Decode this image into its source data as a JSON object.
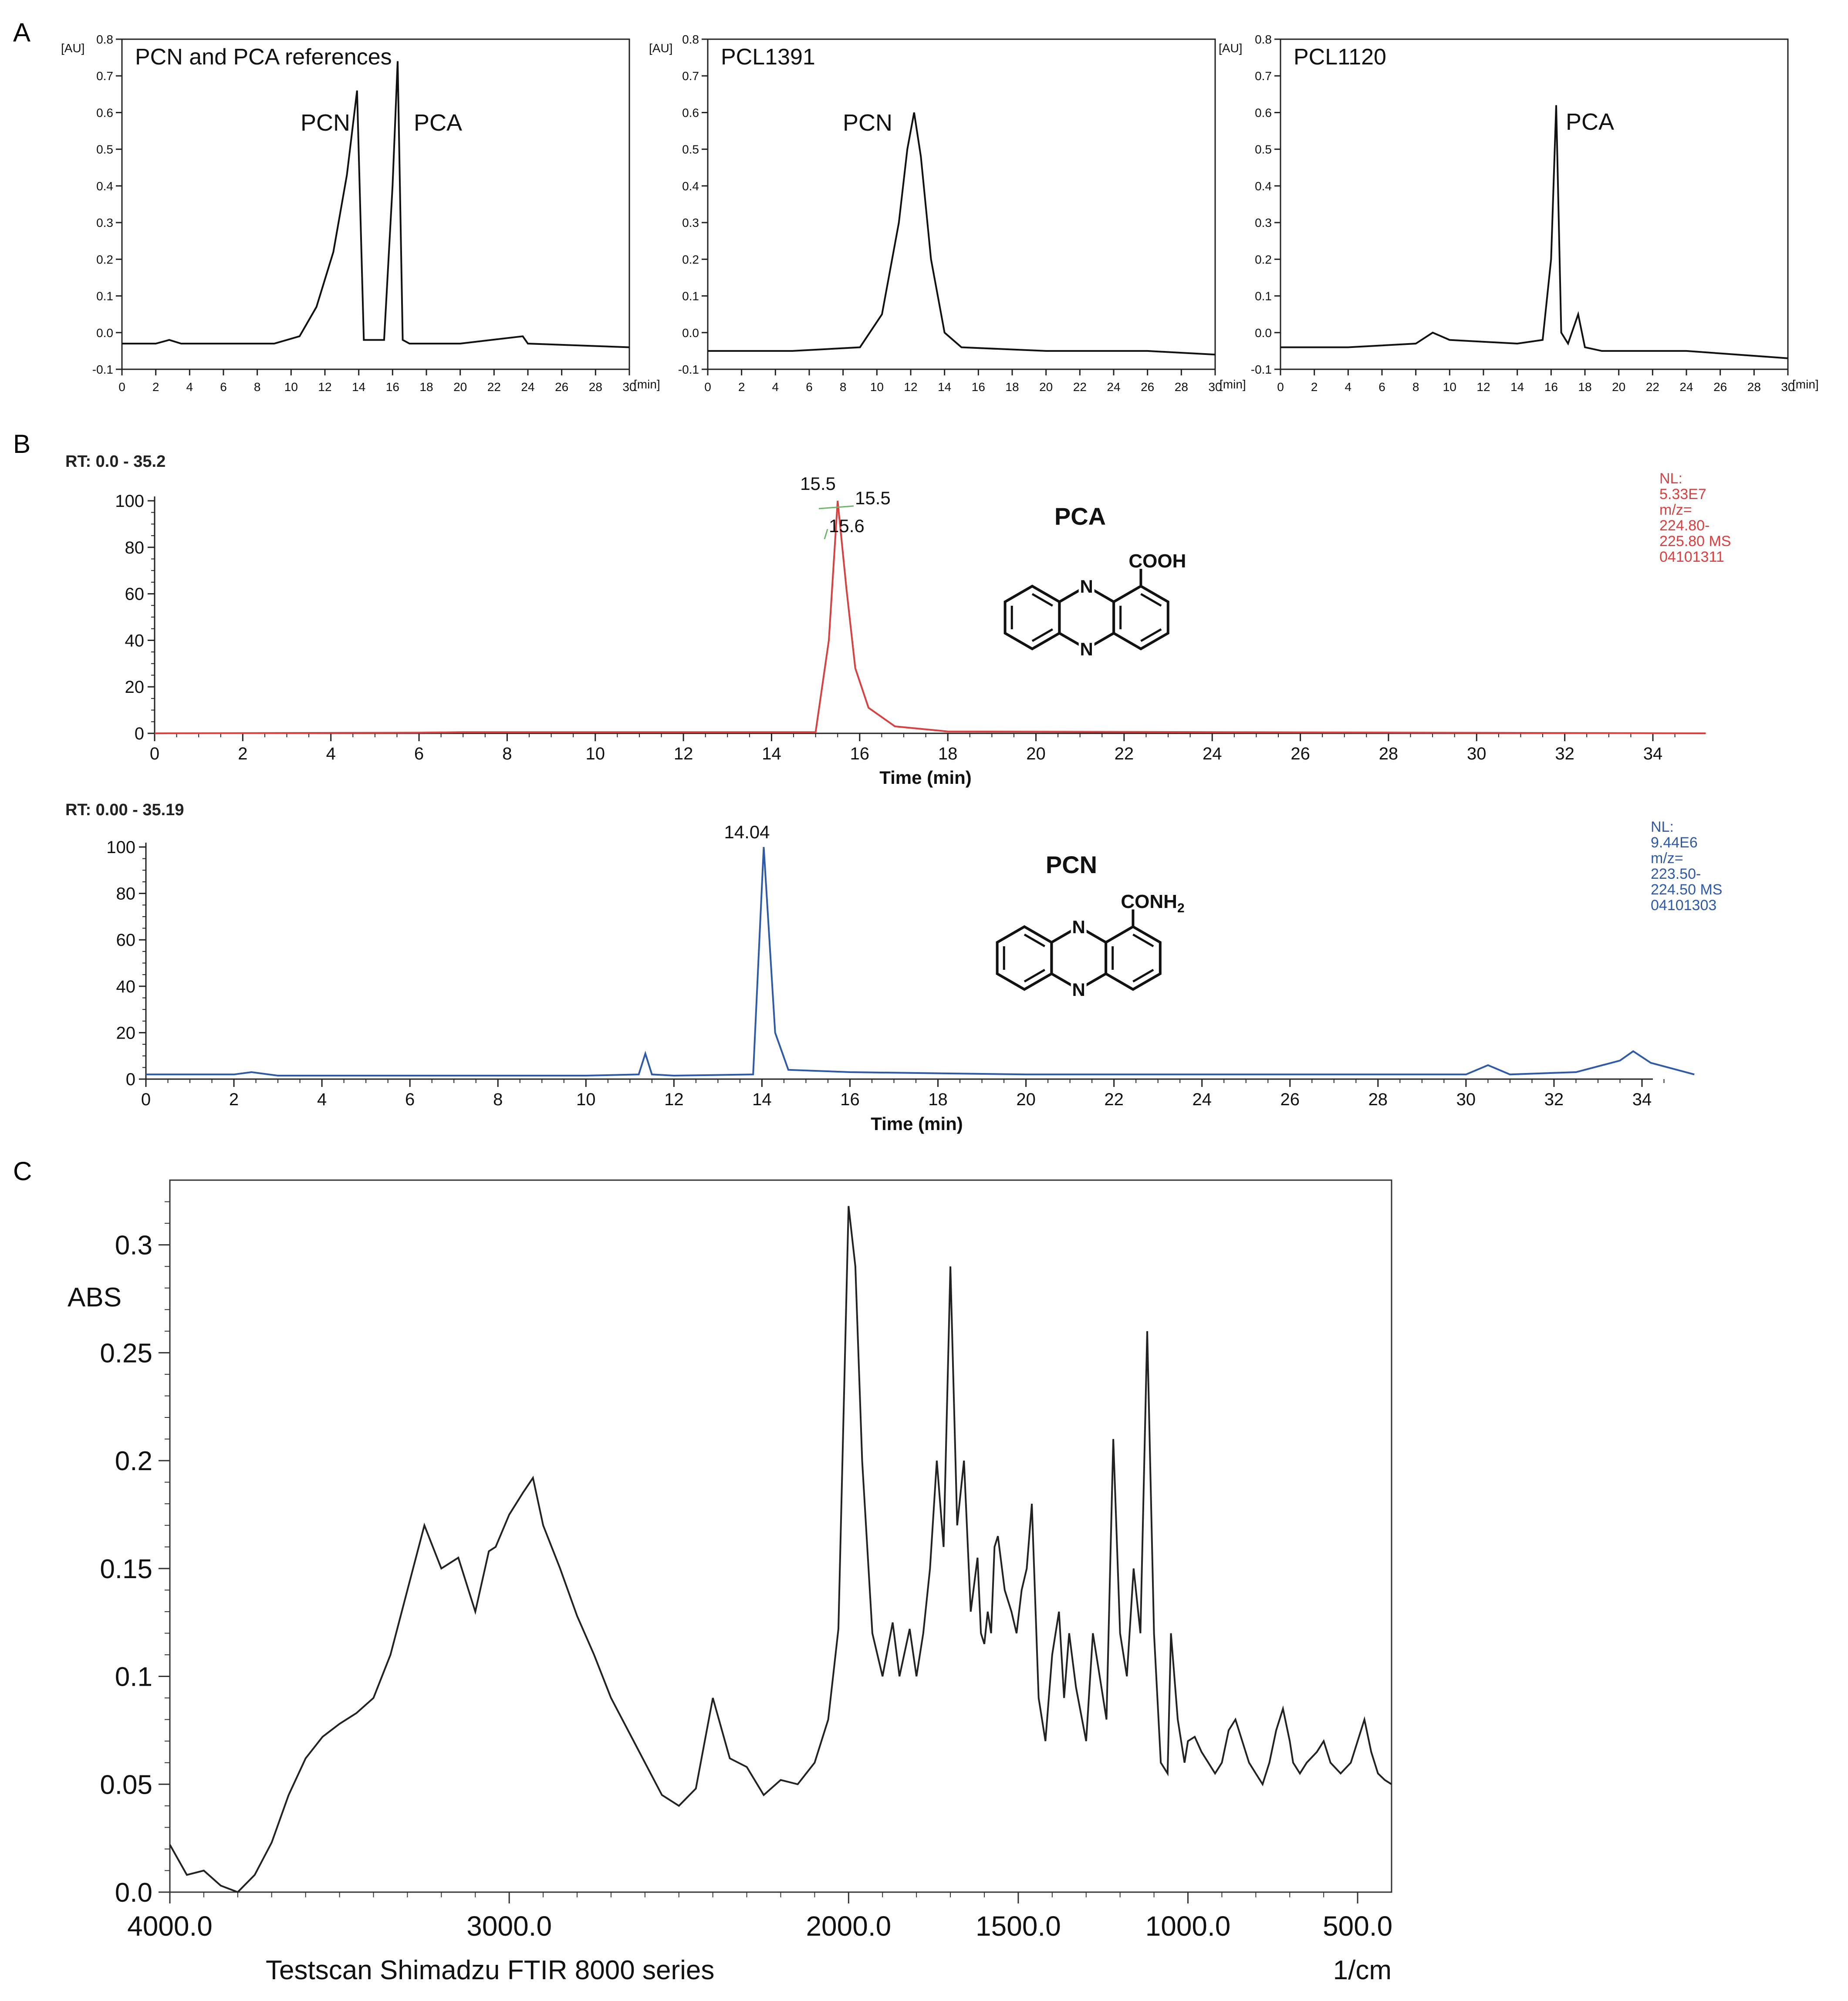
{
  "panels": {
    "A": {
      "letter": "A",
      "y_unit": "[AU]",
      "x_unit": "[min]",
      "x_ticks": [
        "0",
        "2",
        "4",
        "6",
        "8",
        "10",
        "12",
        "14",
        "16",
        "18",
        "20",
        "22",
        "24",
        "26",
        "28",
        "30"
      ],
      "y_ticks": [
        "-0.1",
        "0.0",
        "0.1",
        "0.2",
        "0.3",
        "0.4",
        "0.5",
        "0.6",
        "0.7",
        "0.8"
      ]
    },
    "B": {
      "letter": "B",
      "xlabel": "Time (min)",
      "x_ticks": [
        "0",
        "2",
        "4",
        "6",
        "8",
        "10",
        "12",
        "14",
        "16",
        "18",
        "20",
        "22",
        "24",
        "26",
        "28",
        "30",
        "32",
        "34"
      ],
      "y_ticks": [
        "0",
        "20",
        "40",
        "60",
        "80",
        "100"
      ]
    },
    "C": {
      "letter": "C",
      "ylabel": "ABS",
      "xunit": "1/cm",
      "footer": "Testscan Shimadzu FTIR 8000 series",
      "x_ticks": [
        "4000.0",
        "3000.0",
        "2000.0",
        "1500.0",
        "1000.0",
        "500.0"
      ],
      "y_ticks": [
        "0.0",
        "0.05",
        "0.1",
        "0.15",
        "0.2",
        "0.25",
        "0.3"
      ]
    }
  },
  "chart_data": [
    {
      "type": "line",
      "title": "PCN and PCA references",
      "ylim": [
        -0.1,
        0.8
      ],
      "xlim": [
        0,
        30
      ],
      "series": [
        {
          "x": [
            0,
            2,
            2.8,
            3.5,
            6,
            9,
            10.5,
            11.5,
            12.5,
            13.3,
            13.9,
            14.3,
            15.5,
            16.0,
            16.3,
            16.6,
            17,
            20,
            23.7,
            24,
            30
          ],
          "y": [
            -0.03,
            -0.03,
            -0.02,
            -0.03,
            -0.03,
            -0.03,
            -0.01,
            0.07,
            0.22,
            0.43,
            0.66,
            -0.02,
            -0.02,
            0.4,
            0.74,
            -0.02,
            -0.03,
            -0.03,
            -0.01,
            -0.03,
            -0.04
          ]
        }
      ],
      "annotations": [
        "PCN",
        "PCA"
      ]
    },
    {
      "type": "line",
      "title": "PCL1391",
      "ylim": [
        -0.1,
        0.8
      ],
      "xlim": [
        0,
        30
      ],
      "series": [
        {
          "x": [
            0,
            5,
            9,
            10.3,
            11.3,
            11.8,
            12.2,
            12.6,
            13.2,
            14,
            15,
            20,
            26,
            30
          ],
          "y": [
            -0.05,
            -0.05,
            -0.04,
            0.05,
            0.3,
            0.5,
            0.6,
            0.48,
            0.2,
            0.0,
            -0.04,
            -0.05,
            -0.05,
            -0.06
          ]
        }
      ],
      "annotations": [
        "PCN"
      ]
    },
    {
      "type": "line",
      "title": "PCL1120",
      "ylim": [
        -0.1,
        0.8
      ],
      "xlim": [
        0,
        30
      ],
      "series": [
        {
          "x": [
            0,
            4,
            8,
            9,
            10,
            14,
            15.5,
            16.0,
            16.3,
            16.6,
            17.0,
            17.6,
            18.0,
            19,
            24,
            30
          ],
          "y": [
            -0.04,
            -0.04,
            -0.03,
            0.0,
            -0.02,
            -0.03,
            -0.02,
            0.2,
            0.62,
            0.0,
            -0.03,
            0.05,
            -0.04,
            -0.05,
            -0.05,
            -0.07
          ]
        }
      ],
      "annotations": [
        "PCA"
      ]
    },
    {
      "type": "line",
      "title": "PCA",
      "xlabel": "Time (min)",
      "xlim": [
        0,
        35.2
      ],
      "ylim": [
        0,
        100
      ],
      "range_label": "RT: 0.0 - 35.2",
      "info": [
        "NL:",
        "5.33E7",
        "m/z=",
        "224.80-",
        "225.80  MS",
        "04101311"
      ],
      "peak_labels": [
        "15.5",
        "15.5",
        "15.6"
      ],
      "structure_label": "COOH",
      "color": "#d94040",
      "series": [
        {
          "x": [
            0,
            6,
            7,
            15.0,
            15.3,
            15.5,
            15.7,
            15.9,
            16.2,
            16.8,
            18,
            35.2
          ],
          "y": [
            0,
            0.3,
            0.5,
            0.5,
            40,
            100,
            62,
            28,
            11,
            3,
            0.8,
            0
          ]
        }
      ]
    },
    {
      "type": "line",
      "title": "PCN",
      "xlabel": "Time (min)",
      "xlim": [
        0,
        35.19
      ],
      "ylim": [
        0,
        100
      ],
      "range_label": "RT: 0.00 - 35.19",
      "info": [
        "NL:",
        "9.44E6",
        "m/z=",
        "223.50-",
        "224.50  MS",
        "04101303"
      ],
      "peak_labels": [
        "14.04"
      ],
      "structure_label": "CONH2",
      "color": "#2e5aa8",
      "series": [
        {
          "x": [
            0,
            2,
            2.4,
            3,
            10,
            11.2,
            11.35,
            11.5,
            12,
            13.8,
            14.04,
            14.3,
            14.6,
            16,
            20,
            30,
            30.5,
            31,
            32.5,
            33.5,
            33.8,
            34.2,
            35.19
          ],
          "y": [
            2,
            2,
            3,
            1.5,
            1.5,
            2,
            11,
            2,
            1.5,
            2,
            100,
            20,
            4,
            3,
            2,
            2,
            6,
            2,
            3,
            8,
            12,
            7,
            2
          ]
        }
      ]
    },
    {
      "type": "line",
      "title": "",
      "xlabel": "1/cm",
      "ylabel": "ABS",
      "xlim": [
        4000,
        400
      ],
      "ylim": [
        0,
        0.3
      ],
      "series": [
        {
          "x": [
            4000,
            3950,
            3900,
            3850,
            3800,
            3750,
            3700,
            3650,
            3600,
            3550,
            3500,
            3450,
            3400,
            3350,
            3300,
            3250,
            3200,
            3150,
            3100,
            3060,
            3040,
            3000,
            2960,
            2930,
            2900,
            2850,
            2800,
            2750,
            2700,
            2650,
            2600,
            2550,
            2500,
            2450,
            2400,
            2350,
            2300,
            2250,
            2200,
            2150,
            2100,
            2060,
            2030,
            2000,
            1980,
            1960,
            1930,
            1900,
            1870,
            1850,
            1820,
            1800,
            1780,
            1760,
            1740,
            1720,
            1700,
            1680,
            1660,
            1640,
            1620,
            1610,
            1600,
            1590,
            1580,
            1570,
            1560,
            1540,
            1520,
            1505,
            1490,
            1475,
            1460,
            1440,
            1420,
            1400,
            1380,
            1365,
            1350,
            1330,
            1300,
            1280,
            1260,
            1240,
            1220,
            1200,
            1180,
            1160,
            1140,
            1120,
            1100,
            1080,
            1060,
            1050,
            1030,
            1010,
            1000,
            980,
            960,
            940,
            920,
            900,
            880,
            860,
            840,
            820,
            800,
            780,
            760,
            740,
            720,
            700,
            690,
            670,
            650,
            620,
            600,
            580,
            550,
            520,
            500,
            480,
            460,
            440,
            420,
            400
          ],
          "y": [
            0.022,
            0.008,
            0.01,
            0.003,
            0.0,
            0.008,
            0.023,
            0.045,
            0.062,
            0.072,
            0.078,
            0.083,
            0.09,
            0.11,
            0.14,
            0.17,
            0.15,
            0.155,
            0.13,
            0.158,
            0.16,
            0.175,
            0.185,
            0.192,
            0.17,
            0.15,
            0.128,
            0.11,
            0.09,
            0.075,
            0.06,
            0.045,
            0.04,
            0.048,
            0.09,
            0.062,
            0.058,
            0.045,
            0.052,
            0.05,
            0.06,
            0.08,
            0.122,
            0.318,
            0.29,
            0.2,
            0.12,
            0.1,
            0.125,
            0.1,
            0.122,
            0.1,
            0.12,
            0.15,
            0.2,
            0.16,
            0.29,
            0.17,
            0.2,
            0.13,
            0.155,
            0.12,
            0.115,
            0.13,
            0.12,
            0.16,
            0.165,
            0.14,
            0.13,
            0.12,
            0.14,
            0.15,
            0.18,
            0.09,
            0.07,
            0.11,
            0.13,
            0.09,
            0.12,
            0.095,
            0.07,
            0.12,
            0.1,
            0.08,
            0.21,
            0.12,
            0.1,
            0.15,
            0.12,
            0.26,
            0.12,
            0.06,
            0.055,
            0.12,
            0.08,
            0.06,
            0.07,
            0.072,
            0.065,
            0.06,
            0.055,
            0.06,
            0.075,
            0.08,
            0.07,
            0.06,
            0.055,
            0.05,
            0.06,
            0.075,
            0.085,
            0.07,
            0.06,
            0.055,
            0.06,
            0.065,
            0.07,
            0.06,
            0.055,
            0.06,
            0.07,
            0.08,
            0.065,
            0.055,
            0.052,
            0.05
          ]
        }
      ]
    }
  ]
}
